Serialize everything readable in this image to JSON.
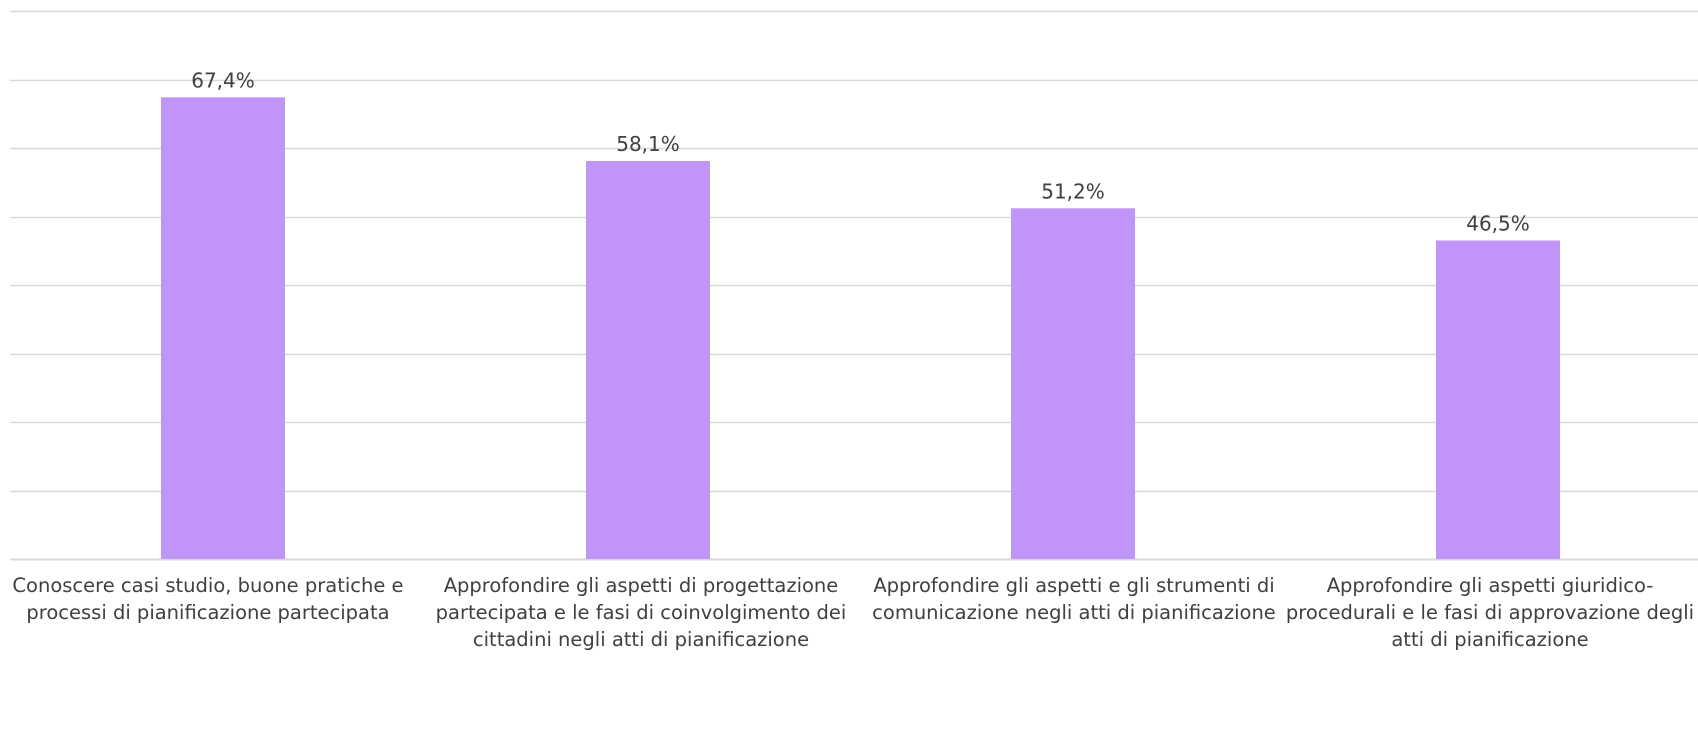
{
  "chart_data": {
    "type": "bar",
    "categories": [
      "Conoscere casi studio, buone pratiche e processi di pianificazione partecipata",
      "Approfondire gli aspetti di progettazione partecipata e le fasi di coinvolgimento dei cittadini negli atti di pianificazione",
      "Approfondire gli aspetti e gli strumenti di comunicazione negli atti di pianificazione",
      "Approfondire gli aspetti giuridico-procedurali e le fasi di approvazione degli atti di pianificazione"
    ],
    "values": [
      67.4,
      58.1,
      51.2,
      46.5
    ],
    "data_labels": [
      "67,4%",
      "58,1%",
      "51,2%",
      "46,5%"
    ],
    "title": "",
    "xlabel": "",
    "ylabel": "",
    "ylim": [
      0,
      80
    ],
    "y_tick_step": 10,
    "y_tick_labels_shown": false,
    "grid": true,
    "legend": "none",
    "colors": {
      "bar": "#c194f8",
      "grid": "#d9d9d9",
      "text": "#404040"
    }
  }
}
